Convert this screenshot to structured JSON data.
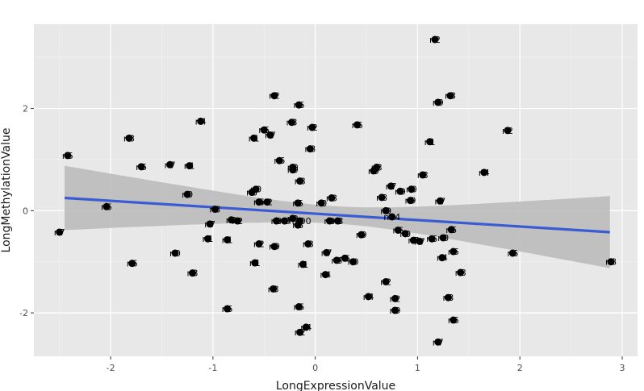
{
  "chart_data": {
    "type": "scatter",
    "title": "",
    "xlabel": "LongExpressionValue",
    "ylabel": "LongMethylationValue",
    "xlim": [
      -2.75,
      3.15
    ],
    "ylim": [
      -2.85,
      3.65
    ],
    "x_ticks": [
      -2,
      -1,
      0,
      1,
      2,
      3
    ],
    "x_tick_labels": [
      "-2",
      "-1",
      "0",
      "1",
      "2",
      "3"
    ],
    "y_ticks": [
      -2,
      0,
      2
    ],
    "y_tick_labels": [
      "-2",
      "0",
      "2"
    ],
    "grid": true,
    "legend": "none",
    "colors": {
      "panel": "#e8e8e8",
      "grid_major": "#ffffff",
      "grid_minor": "#f2f2f2",
      "point": "#000000",
      "line": "#3a5bd1",
      "band": "#b8b8b8"
    },
    "regression": {
      "method": "lm",
      "x": [
        -2.45,
        2.88
      ],
      "y": [
        0.25,
        -0.42
      ],
      "band_upper": [
        0.88,
        0.29
      ],
      "band_lower": [
        -0.38,
        -1.12
      ]
    },
    "points": [
      {
        "x": 1.17,
        "y": 3.35,
        "label": "n2"
      },
      {
        "x": -0.4,
        "y": 2.25,
        "label": "n2"
      },
      {
        "x": -0.16,
        "y": 2.07,
        "label": "n6"
      },
      {
        "x": 1.32,
        "y": 2.25,
        "label": "n3"
      },
      {
        "x": 1.2,
        "y": 2.12,
        "label": "n9"
      },
      {
        "x": -1.12,
        "y": 1.75,
        "label": "n4"
      },
      {
        "x": -0.23,
        "y": 1.73,
        "label": "n3"
      },
      {
        "x": -0.03,
        "y": 1.63,
        "label": "n2"
      },
      {
        "x": 0.41,
        "y": 1.68,
        "label": "n6"
      },
      {
        "x": 1.88,
        "y": 1.57,
        "label": "n2"
      },
      {
        "x": -0.5,
        "y": 1.58,
        "label": "n5"
      },
      {
        "x": -0.44,
        "y": 1.48,
        "label": "n7"
      },
      {
        "x": -0.6,
        "y": 1.42,
        "label": "n1"
      },
      {
        "x": -1.82,
        "y": 1.42,
        "label": "n8"
      },
      {
        "x": 1.12,
        "y": 1.35,
        "label": "n1"
      },
      {
        "x": -0.05,
        "y": 1.21,
        "label": "n8"
      },
      {
        "x": -2.42,
        "y": 1.08,
        "label": "n5"
      },
      {
        "x": -0.35,
        "y": 0.98,
        "label": "n6"
      },
      {
        "x": -1.42,
        "y": 0.9,
        "label": "n7"
      },
      {
        "x": -1.23,
        "y": 0.88,
        "label": "n1"
      },
      {
        "x": -1.7,
        "y": 0.86,
        "label": "n5"
      },
      {
        "x": -0.22,
        "y": 0.85,
        "label": "n0"
      },
      {
        "x": -0.22,
        "y": 0.8,
        "label": "n9"
      },
      {
        "x": 0.6,
        "y": 0.85,
        "label": "n3"
      },
      {
        "x": 0.57,
        "y": 0.78,
        "label": "n9"
      },
      {
        "x": 1.65,
        "y": 0.75,
        "label": "n4"
      },
      {
        "x": 1.05,
        "y": 0.7,
        "label": "n3"
      },
      {
        "x": -0.15,
        "y": 0.58,
        "label": "n8"
      },
      {
        "x": 0.74,
        "y": 0.48,
        "label": "n7"
      },
      {
        "x": 0.94,
        "y": 0.42,
        "label": "n0"
      },
      {
        "x": -0.58,
        "y": 0.42,
        "label": "n0"
      },
      {
        "x": 0.83,
        "y": 0.38,
        "label": "n9"
      },
      {
        "x": -0.62,
        "y": 0.36,
        "label": "n8"
      },
      {
        "x": -1.25,
        "y": 0.32,
        "label": "n0"
      },
      {
        "x": 0.16,
        "y": 0.25,
        "label": "n8"
      },
      {
        "x": 0.65,
        "y": 0.26,
        "label": "n8"
      },
      {
        "x": 0.93,
        "y": 0.2,
        "label": "n9"
      },
      {
        "x": 1.22,
        "y": 0.19,
        "label": "n7"
      },
      {
        "x": -0.55,
        "y": 0.17,
        "label": "n5"
      },
      {
        "x": -0.47,
        "y": 0.17,
        "label": "n2"
      },
      {
        "x": -0.17,
        "y": 0.15,
        "label": "n5"
      },
      {
        "x": 0.06,
        "y": 0.15,
        "label": "n0"
      },
      {
        "x": -2.04,
        "y": 0.08,
        "label": "n5"
      },
      {
        "x": -0.98,
        "y": 0.03,
        "label": "n3"
      },
      {
        "x": 0.69,
        "y": 0.0,
        "label": "n9"
      },
      {
        "x": 0.75,
        "y": -0.12,
        "label": "n24"
      },
      {
        "x": -0.38,
        "y": -0.2,
        "label": "n9"
      },
      {
        "x": -0.22,
        "y": -0.15,
        "label": "n9"
      },
      {
        "x": -0.15,
        "y": -0.2,
        "label": "n500"
      },
      {
        "x": -0.3,
        "y": -0.2,
        "label": "n0"
      },
      {
        "x": -0.82,
        "y": -0.18,
        "label": "n2"
      },
      {
        "x": -0.76,
        "y": -0.2,
        "label": "n2"
      },
      {
        "x": 0.14,
        "y": -0.2,
        "label": "n0"
      },
      {
        "x": 0.22,
        "y": -0.2,
        "label": "n3"
      },
      {
        "x": -0.17,
        "y": -0.28,
        "label": "n8"
      },
      {
        "x": -1.03,
        "y": -0.26,
        "label": "n7"
      },
      {
        "x": 0.81,
        "y": -0.38,
        "label": "n6"
      },
      {
        "x": 0.88,
        "y": -0.45,
        "label": "n0"
      },
      {
        "x": 1.33,
        "y": -0.37,
        "label": "n5"
      },
      {
        "x": 0.45,
        "y": -0.47,
        "label": "n9"
      },
      {
        "x": 1.25,
        "y": -0.53,
        "label": "n0"
      },
      {
        "x": 1.14,
        "y": -0.55,
        "label": "n6"
      },
      {
        "x": 0.96,
        "y": -0.58,
        "label": "n7"
      },
      {
        "x": 1.02,
        "y": -0.6,
        "label": "n7"
      },
      {
        "x": -1.05,
        "y": -0.55,
        "label": "n1"
      },
      {
        "x": -0.86,
        "y": -0.57,
        "label": "n1"
      },
      {
        "x": -0.55,
        "y": -0.65,
        "label": "n2"
      },
      {
        "x": -0.4,
        "y": -0.7,
        "label": "n9"
      },
      {
        "x": -0.07,
        "y": -0.65,
        "label": "n8"
      },
      {
        "x": 1.35,
        "y": -0.8,
        "label": "n6"
      },
      {
        "x": 1.24,
        "y": -0.92,
        "label": "n4"
      },
      {
        "x": 1.93,
        "y": -0.83,
        "label": "n6"
      },
      {
        "x": 0.11,
        "y": -0.82,
        "label": "n7"
      },
      {
        "x": 0.29,
        "y": -0.93,
        "label": "n5"
      },
      {
        "x": 0.21,
        "y": -0.97,
        "label": "n6"
      },
      {
        "x": 0.37,
        "y": -1.0,
        "label": "n0"
      },
      {
        "x": -1.37,
        "y": -0.83,
        "label": "n0"
      },
      {
        "x": -1.79,
        "y": -1.03,
        "label": "n6"
      },
      {
        "x": -0.59,
        "y": -1.02,
        "label": "n1"
      },
      {
        "x": -0.12,
        "y": -1.05,
        "label": "n1"
      },
      {
        "x": 2.89,
        "y": -1.0,
        "label": "n8"
      },
      {
        "x": 1.42,
        "y": -1.21,
        "label": "n8"
      },
      {
        "x": -1.2,
        "y": -1.22,
        "label": "n3"
      },
      {
        "x": 0.1,
        "y": -1.25,
        "label": "n4"
      },
      {
        "x": 0.69,
        "y": -1.39,
        "label": "n2"
      },
      {
        "x": -0.41,
        "y": -1.53,
        "label": "n3"
      },
      {
        "x": 0.52,
        "y": -1.68,
        "label": "n4"
      },
      {
        "x": 1.3,
        "y": -1.7,
        "label": "n3"
      },
      {
        "x": 0.78,
        "y": -1.72,
        "label": "n2"
      },
      {
        "x": -0.16,
        "y": -1.88,
        "label": "n5"
      },
      {
        "x": -0.86,
        "y": -1.92,
        "label": "n5"
      },
      {
        "x": 0.78,
        "y": -1.95,
        "label": "n9"
      },
      {
        "x": 1.35,
        "y": -2.14,
        "label": "n6"
      },
      {
        "x": -0.09,
        "y": -2.28,
        "label": "n4"
      },
      {
        "x": -0.15,
        "y": -2.38,
        "label": "n2"
      },
      {
        "x": 1.2,
        "y": -2.57,
        "label": "n7"
      },
      {
        "x": -2.5,
        "y": -0.42,
        "label": "n7"
      }
    ]
  }
}
